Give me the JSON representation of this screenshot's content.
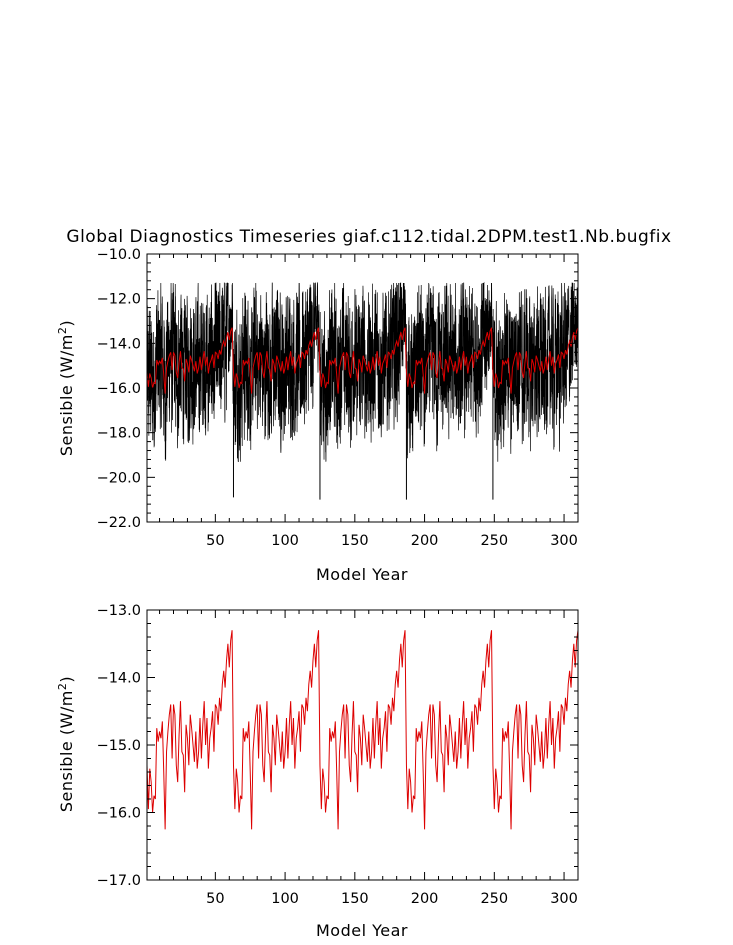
{
  "chart_data": [
    {
      "type": "line",
      "title": "Global Diagnostics Timeseries giaf.c112.tidal.2DPM.test1.Nb.bugfix",
      "xlabel": "Model Year",
      "ylabel": "Sensible (W/m2)",
      "ylabel_parts": {
        "main": "Sensible (W/m",
        "sup": "2",
        "close": ")"
      },
      "xlim": [
        1,
        310
      ],
      "ylim": [
        -22.0,
        -10.0
      ],
      "xticks": [
        50,
        100,
        150,
        200,
        250,
        300
      ],
      "xtick_labels": [
        "50",
        "100",
        "150",
        "200",
        "250",
        "300"
      ],
      "yticks": [
        -22.0,
        -20.0,
        -18.0,
        -16.0,
        -14.0,
        -12.0,
        -10.0
      ],
      "ytick_labels": [
        "−22.0",
        "−20.0",
        "−18.0",
        "−16.0",
        "−14.0",
        "−12.0",
        "−10.0"
      ],
      "grid": false,
      "series": [
        {
          "role": "monthly",
          "color": "#000000",
          "envelope": {
            "low": -19.0,
            "high": -12.5
          },
          "cycle_start_years": [
            1,
            63,
            125,
            187,
            249
          ],
          "cycle_end_spike_high": -11.5,
          "cycle_start_spike_low": [
            -20.9,
            -21.0,
            -21.0,
            -21.0
          ]
        },
        {
          "role": "annual",
          "color": "#dd0000",
          "ref": "annual"
        }
      ]
    },
    {
      "type": "line",
      "title": "",
      "xlabel": "Model Year",
      "ylabel": "Sensible (W/m2)",
      "ylabel_parts": {
        "main": "Sensible (W/m",
        "sup": "2",
        "close": ")"
      },
      "xlim": [
        1,
        310
      ],
      "ylim": [
        -17.0,
        -13.0
      ],
      "xticks": [
        50,
        100,
        150,
        200,
        250,
        300
      ],
      "xtick_labels": [
        "50",
        "100",
        "150",
        "200",
        "250",
        "300"
      ],
      "yticks": [
        -17.0,
        -16.0,
        -15.0,
        -14.0,
        -13.0
      ],
      "ytick_labels": [
        "−17.0",
        "−16.0",
        "−15.0",
        "−14.0",
        "−13.0"
      ],
      "grid": false,
      "series": [
        {
          "role": "annual",
          "color": "#dd0000",
          "ref": "annual"
        }
      ]
    }
  ],
  "annual": {
    "x_start": 1,
    "cycle_length": 62,
    "cycle_values": [
      -15.3,
      -15.95,
      -15.35,
      -15.55,
      -16.0,
      -15.75,
      -15.8,
      -14.75,
      -14.95,
      -14.8,
      -14.9,
      -14.65,
      -15.4,
      -16.25,
      -15.1,
      -14.8,
      -14.55,
      -14.4,
      -15.2,
      -14.4,
      -14.55,
      -15.3,
      -15.55,
      -14.85,
      -14.35,
      -15.1,
      -15.15,
      -15.7,
      -14.7,
      -14.9,
      -15.3,
      -14.55,
      -14.75,
      -15.0,
      -15.25,
      -14.8,
      -15.35,
      -15.1,
      -14.6,
      -15.2,
      -14.7,
      -14.35,
      -15.0,
      -14.6,
      -15.35,
      -14.9,
      -14.75,
      -14.5,
      -15.1,
      -14.4,
      -14.45,
      -14.7,
      -14.3,
      -14.5,
      -14.1,
      -13.9,
      -14.15,
      -13.75,
      -13.5,
      -13.85,
      -13.45,
      -13.3
    ],
    "cycle_count": 5,
    "final_year": 310
  }
}
